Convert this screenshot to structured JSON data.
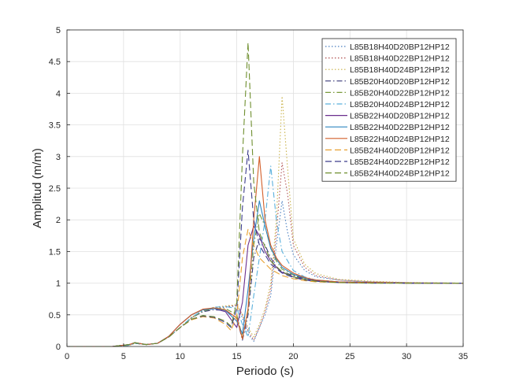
{
  "chart_data": {
    "type": "line",
    "xlabel": "Periodo (s)",
    "ylabel": "Amplitud (m/m)",
    "xlim": [
      0,
      35
    ],
    "ylim": [
      0,
      5
    ],
    "xticks": [
      0,
      5,
      10,
      15,
      20,
      25,
      30,
      35
    ],
    "yticks": [
      0,
      0.5,
      1,
      1.5,
      2,
      2.5,
      3,
      3.5,
      4,
      4.5,
      5
    ],
    "grid": true,
    "legend_position": "top-right",
    "series": [
      {
        "name": "L85B18H40D20BP12HP12",
        "color": "#4a7fc0",
        "dash": "1.5,2.5",
        "x": [
          0,
          4,
          5.5,
          6,
          7,
          8,
          9,
          10,
          11,
          12,
          13,
          14,
          15,
          15.5,
          16,
          16.5,
          17,
          17.5,
          18,
          18.5,
          19,
          19.5,
          20,
          21,
          22,
          24,
          27,
          30,
          35
        ],
        "y": [
          0,
          0,
          0.02,
          0.05,
          0.03,
          0.05,
          0.15,
          0.3,
          0.45,
          0.55,
          0.6,
          0.62,
          0.64,
          0.45,
          0.2,
          0.08,
          0.3,
          0.5,
          0.8,
          1.6,
          2.3,
          1.8,
          1.45,
          1.2,
          1.1,
          1.05,
          1.02,
          1.01,
          1.0
        ]
      },
      {
        "name": "L85B18H40D22BP12HP12",
        "color": "#b05050",
        "dash": "1.5,2.5",
        "x": [
          0,
          4,
          5.5,
          6,
          7,
          8,
          9,
          10,
          11,
          12,
          13,
          14,
          15,
          15.5,
          16,
          16.5,
          17,
          17.5,
          18,
          18.5,
          19,
          19.5,
          20,
          21,
          22,
          24,
          27,
          30,
          35
        ],
        "y": [
          0,
          0,
          0.02,
          0.05,
          0.03,
          0.05,
          0.15,
          0.3,
          0.45,
          0.56,
          0.61,
          0.63,
          0.65,
          0.5,
          0.25,
          0.1,
          0.3,
          0.55,
          0.9,
          1.8,
          2.9,
          2.4,
          1.6,
          1.25,
          1.12,
          1.05,
          1.02,
          1.01,
          1.0
        ]
      },
      {
        "name": "L85B18H40D24BP12HP12",
        "color": "#c9b24a",
        "dash": "1.5,2.5",
        "x": [
          0,
          4,
          5.5,
          6,
          7,
          8,
          9,
          10,
          11,
          12,
          13,
          14,
          15,
          15.5,
          16,
          16.5,
          17,
          17.5,
          18,
          18.5,
          19,
          19.5,
          20,
          21,
          22,
          24,
          27,
          30,
          35
        ],
        "y": [
          0,
          0,
          0.02,
          0.05,
          0.03,
          0.05,
          0.15,
          0.3,
          0.46,
          0.57,
          0.62,
          0.64,
          0.66,
          0.5,
          0.3,
          0.15,
          0.35,
          0.6,
          1.0,
          2.0,
          3.95,
          2.8,
          1.7,
          1.3,
          1.15,
          1.06,
          1.03,
          1.01,
          1.0
        ]
      },
      {
        "name": "L85B20H40D20BP12HP12",
        "color": "#3a3a7a",
        "dash": "7,3,1.5,3",
        "x": [
          0,
          4,
          5.5,
          6,
          7,
          8,
          9,
          10,
          11,
          12,
          13,
          14,
          15,
          15.5,
          16,
          16.5,
          17,
          17.5,
          18,
          18.5,
          19,
          20,
          21,
          22,
          24,
          27,
          30,
          35
        ],
        "y": [
          0,
          0,
          0.02,
          0.05,
          0.03,
          0.05,
          0.15,
          0.3,
          0.45,
          0.55,
          0.58,
          0.57,
          0.45,
          0.1,
          0.5,
          1.4,
          1.7,
          1.6,
          1.4,
          1.25,
          1.18,
          1.12,
          1.07,
          1.04,
          1.02,
          1.01,
          1.0,
          1.0
        ]
      },
      {
        "name": "L85B20H40D22BP12HP12",
        "color": "#7a9a3a",
        "dash": "7,3,1.5,3",
        "x": [
          0,
          4,
          5.5,
          6,
          7,
          8,
          9,
          10,
          11,
          12,
          13,
          14,
          15,
          15.5,
          16,
          16.5,
          17,
          17.5,
          18,
          18.5,
          19,
          20,
          21,
          22,
          24,
          27,
          30,
          35
        ],
        "y": [
          0,
          0,
          0.02,
          0.05,
          0.03,
          0.05,
          0.15,
          0.3,
          0.45,
          0.56,
          0.6,
          0.6,
          0.5,
          0.15,
          0.55,
          1.6,
          2.1,
          1.9,
          1.55,
          1.35,
          1.22,
          1.13,
          1.08,
          1.05,
          1.02,
          1.01,
          1.0,
          1.0
        ]
      },
      {
        "name": "L85B20H40D24BP12HP12",
        "color": "#5ab0dc",
        "dash": "7,3,1.5,3",
        "x": [
          0,
          4,
          5.5,
          6,
          7,
          8,
          9,
          10,
          11,
          12,
          13,
          14,
          15,
          15.5,
          16,
          16.5,
          17,
          17.5,
          18,
          18.5,
          19,
          20,
          21,
          22,
          24,
          27,
          30,
          35
        ],
        "y": [
          0,
          0,
          0.02,
          0.05,
          0.03,
          0.05,
          0.15,
          0.3,
          0.46,
          0.57,
          0.62,
          0.63,
          0.6,
          0.35,
          0.15,
          0.8,
          1.4,
          2.0,
          2.85,
          2.0,
          1.5,
          1.2,
          1.1,
          1.05,
          1.02,
          1.01,
          1.0,
          1.0
        ]
      },
      {
        "name": "L85B22H40D20BP12HP12",
        "color": "#6a2f8e",
        "dash": "",
        "x": [
          0,
          4,
          5.5,
          6,
          7,
          8,
          9,
          10,
          11,
          12,
          13,
          14,
          15,
          15.5,
          16,
          16.5,
          17,
          17.5,
          18,
          18.5,
          19,
          20,
          21,
          22,
          24,
          27,
          30,
          35
        ],
        "y": [
          0,
          0,
          0.03,
          0.06,
          0.03,
          0.05,
          0.16,
          0.35,
          0.5,
          0.58,
          0.6,
          0.55,
          0.3,
          0.7,
          1.6,
          1.9,
          1.75,
          1.5,
          1.35,
          1.25,
          1.17,
          1.1,
          1.06,
          1.04,
          1.02,
          1.01,
          1.0,
          1.0
        ]
      },
      {
        "name": "L85B22H40D22BP12HP12",
        "color": "#2e86c1",
        "dash": "",
        "x": [
          0,
          4,
          5.5,
          6,
          7,
          8,
          9,
          10,
          11,
          12,
          13,
          14,
          15,
          15.5,
          16,
          16.5,
          17,
          17.5,
          18,
          18.5,
          19,
          20,
          21,
          22,
          24,
          27,
          30,
          35
        ],
        "y": [
          0,
          0,
          0.03,
          0.06,
          0.03,
          0.05,
          0.16,
          0.35,
          0.5,
          0.58,
          0.6,
          0.57,
          0.4,
          0.2,
          0.9,
          1.7,
          2.3,
          1.9,
          1.55,
          1.38,
          1.25,
          1.14,
          1.08,
          1.05,
          1.02,
          1.01,
          1.0,
          1.0
        ]
      },
      {
        "name": "L85B22H40D24BP12HP12",
        "color": "#d35f2a",
        "dash": "",
        "x": [
          0,
          4,
          5.5,
          6,
          7,
          8,
          9,
          10,
          11,
          12,
          13,
          14,
          15,
          15.5,
          16,
          16.5,
          17,
          17.5,
          18,
          18.5,
          19,
          20,
          21,
          22,
          24,
          27,
          30,
          35
        ],
        "y": [
          0,
          0,
          0.03,
          0.06,
          0.03,
          0.05,
          0.16,
          0.35,
          0.5,
          0.59,
          0.61,
          0.58,
          0.45,
          0.12,
          0.6,
          2.0,
          3.0,
          2.0,
          1.6,
          1.4,
          1.28,
          1.16,
          1.09,
          1.05,
          1.02,
          1.01,
          1.0,
          1.0
        ]
      },
      {
        "name": "L85B24H40D20BP12HP12",
        "color": "#e8a030",
        "dash": "8,4",
        "x": [
          0,
          4,
          5.5,
          6,
          7,
          8,
          9,
          10,
          11,
          12,
          13,
          14,
          14.5,
          15,
          15.5,
          16,
          16.5,
          17,
          18,
          19,
          20,
          21,
          22,
          24,
          27,
          30,
          35
        ],
        "y": [
          0,
          0,
          0.03,
          0.06,
          0.03,
          0.05,
          0.15,
          0.3,
          0.42,
          0.47,
          0.45,
          0.35,
          0.25,
          0.5,
          1.4,
          1.85,
          1.6,
          1.4,
          1.22,
          1.12,
          1.07,
          1.04,
          1.02,
          1.01,
          1.0,
          1.0,
          1.0
        ]
      },
      {
        "name": "L85B24H40D22BP12HP12",
        "color": "#3c3c8c",
        "dash": "8,4",
        "x": [
          0,
          4,
          5.5,
          6,
          7,
          8,
          9,
          10,
          11,
          12,
          13,
          14,
          14.5,
          15,
          15.5,
          16,
          16.5,
          17,
          18,
          19,
          20,
          21,
          22,
          24,
          27,
          30,
          35
        ],
        "y": [
          0,
          0,
          0.03,
          0.06,
          0.03,
          0.05,
          0.15,
          0.3,
          0.43,
          0.48,
          0.46,
          0.38,
          0.3,
          0.6,
          2.2,
          3.1,
          2.0,
          1.6,
          1.3,
          1.16,
          1.09,
          1.05,
          1.03,
          1.01,
          1.0,
          1.0,
          1.0
        ]
      },
      {
        "name": "L85B24H40D24BP12HP12",
        "color": "#6f8f2f",
        "dash": "8,4",
        "x": [
          0,
          4,
          5.5,
          6,
          7,
          8,
          9,
          10,
          11,
          12,
          13,
          14,
          14.5,
          15,
          15.5,
          16,
          16.5,
          17,
          18,
          19,
          20,
          21,
          22,
          24,
          27,
          30,
          35
        ],
        "y": [
          0,
          0,
          0.03,
          0.06,
          0.03,
          0.05,
          0.15,
          0.3,
          0.43,
          0.49,
          0.47,
          0.4,
          0.32,
          0.7,
          3.0,
          4.8,
          2.6,
          1.8,
          1.35,
          1.18,
          1.1,
          1.06,
          1.03,
          1.01,
          1.0,
          1.0,
          1.0
        ]
      }
    ]
  }
}
